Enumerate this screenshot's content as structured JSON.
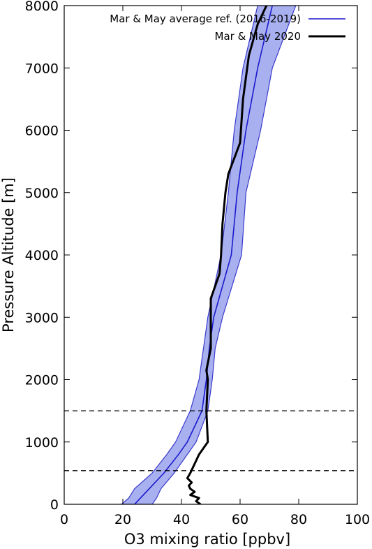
{
  "chart_data": {
    "type": "line",
    "title": "",
    "xlabel": "O3 mixing ratio [ppbv]",
    "ylabel": "Pressure Altitude [m]",
    "xlim": [
      0,
      100
    ],
    "ylim": [
      0,
      8000
    ],
    "x_ticks": [
      "0",
      "20",
      "40",
      "60",
      "80",
      "100"
    ],
    "y_ticks": [
      "0",
      "1000",
      "2000",
      "3000",
      "4000",
      "5000",
      "6000",
      "7000",
      "8000"
    ],
    "grid": false,
    "legend_position": "top-right",
    "reference_lines": [
      {
        "y": 540,
        "style": "dashed"
      },
      {
        "y": 1500,
        "style": "dashed"
      }
    ],
    "colors": {
      "reference_line": "#1a1acc",
      "reference_band": "#a8b0f0",
      "reference_band_edge": "#3a3acc",
      "observation_line": "#000000"
    },
    "series": [
      {
        "name": "Mar & May average ref. (2016-2019)",
        "color": "#1a1acc",
        "band": true,
        "points": [
          {
            "y": 0,
            "x": 24,
            "low": 19.5,
            "high": 30
          },
          {
            "y": 100,
            "x": 26,
            "low": 22,
            "high": 31.5
          },
          {
            "y": 250,
            "x": 29,
            "low": 24,
            "high": 33
          },
          {
            "y": 500,
            "x": 34,
            "low": 30,
            "high": 37.5
          },
          {
            "y": 800,
            "x": 39,
            "low": 35,
            "high": 42
          },
          {
            "y": 1000,
            "x": 42,
            "low": 38,
            "high": 45
          },
          {
            "y": 1500,
            "x": 47,
            "low": 43,
            "high": 49
          },
          {
            "y": 2000,
            "x": 48.5,
            "low": 46,
            "high": 50.5
          },
          {
            "y": 2500,
            "x": 49.5,
            "low": 47.5,
            "high": 51.5
          },
          {
            "y": 3000,
            "x": 51,
            "low": 49,
            "high": 54
          },
          {
            "y": 4000,
            "x": 57,
            "low": 53.5,
            "high": 60.5
          },
          {
            "y": 5000,
            "x": 59,
            "low": 56,
            "high": 62
          },
          {
            "y": 6000,
            "x": 62,
            "low": 58,
            "high": 67
          },
          {
            "y": 7000,
            "x": 66,
            "low": 61,
            "high": 71
          },
          {
            "y": 8000,
            "x": 71,
            "low": 66,
            "high": 79
          }
        ]
      },
      {
        "name": "Mar & May 2020",
        "color": "#000000",
        "band": false,
        "points": [
          {
            "y": 0,
            "x": 46.5
          },
          {
            "y": 50,
            "x": 45
          },
          {
            "y": 100,
            "x": 46
          },
          {
            "y": 150,
            "x": 43
          },
          {
            "y": 200,
            "x": 44.5
          },
          {
            "y": 250,
            "x": 43
          },
          {
            "y": 300,
            "x": 42.5
          },
          {
            "y": 350,
            "x": 43.5
          },
          {
            "y": 420,
            "x": 42
          },
          {
            "y": 500,
            "x": 43
          },
          {
            "y": 600,
            "x": 44
          },
          {
            "y": 800,
            "x": 46
          },
          {
            "y": 1000,
            "x": 49
          },
          {
            "y": 1500,
            "x": 48.5
          },
          {
            "y": 2000,
            "x": 49
          },
          {
            "y": 2150,
            "x": 48.5
          },
          {
            "y": 2500,
            "x": 50
          },
          {
            "y": 2900,
            "x": 50
          },
          {
            "y": 3300,
            "x": 50
          },
          {
            "y": 3700,
            "x": 53
          },
          {
            "y": 4000,
            "x": 53.5
          },
          {
            "y": 4500,
            "x": 54
          },
          {
            "y": 5000,
            "x": 55
          },
          {
            "y": 5300,
            "x": 56
          },
          {
            "y": 5800,
            "x": 60
          },
          {
            "y": 6500,
            "x": 61
          },
          {
            "y": 7200,
            "x": 63
          },
          {
            "y": 7700,
            "x": 66
          },
          {
            "y": 8000,
            "x": 69
          }
        ]
      }
    ]
  }
}
